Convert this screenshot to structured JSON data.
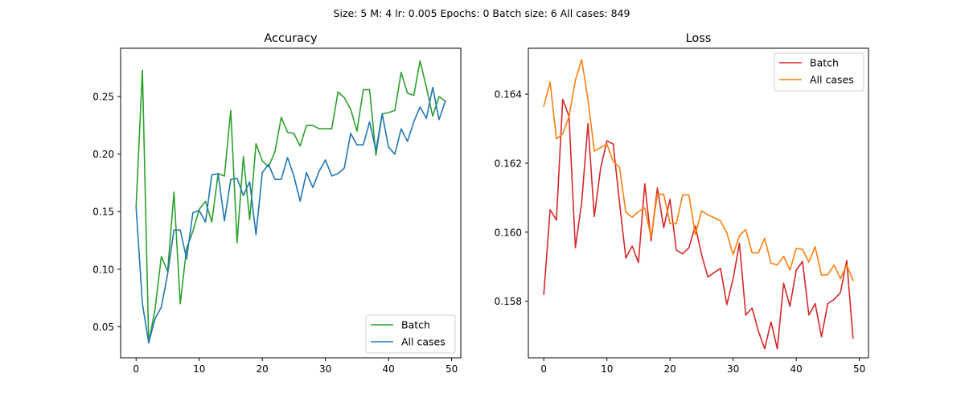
{
  "suptitle": "Size: 5   M: 4   lr: 0.005   Epochs: 0   Batch size: 6   All cases: 849",
  "chart_data": [
    {
      "type": "line",
      "title": "Accuracy",
      "xlabel": "",
      "ylabel": "",
      "xlim": [
        -2.45,
        51.45
      ],
      "ylim": [
        0.023,
        0.292
      ],
      "xticks": [
        0,
        10,
        20,
        30,
        40,
        50
      ],
      "xtick_labels": [
        "0",
        "10",
        "20",
        "30",
        "40",
        "50"
      ],
      "yticks": [
        0.05,
        0.1,
        0.15,
        0.2,
        0.25
      ],
      "ytick_labels": [
        "0.05",
        "0.10",
        "0.15",
        "0.20",
        "0.25"
      ],
      "grid": false,
      "legend_position": "lower-right",
      "x": [
        0,
        1,
        2,
        3,
        4,
        5,
        6,
        7,
        8,
        9,
        10,
        11,
        12,
        13,
        14,
        15,
        16,
        17,
        18,
        19,
        20,
        21,
        22,
        23,
        24,
        25,
        26,
        27,
        28,
        29,
        30,
        31,
        32,
        33,
        34,
        35,
        36,
        37,
        38,
        39,
        40,
        41,
        42,
        43,
        44,
        45,
        46,
        47,
        48,
        49
      ],
      "series": [
        {
          "name": "Batch",
          "color": "#2ca02c",
          "values": [
            0.154,
            0.273,
            0.036,
            0.065,
            0.111,
            0.098,
            0.167,
            0.07,
            0.118,
            0.133,
            0.152,
            0.159,
            0.141,
            0.183,
            0.181,
            0.238,
            0.123,
            0.198,
            0.143,
            0.209,
            0.194,
            0.189,
            0.202,
            0.232,
            0.219,
            0.218,
            0.207,
            0.225,
            0.225,
            0.222,
            0.222,
            0.222,
            0.254,
            0.249,
            0.239,
            0.22,
            0.256,
            0.256,
            0.199,
            0.235,
            0.236,
            0.238,
            0.271,
            0.253,
            0.251,
            0.281,
            0.258,
            0.233,
            0.25,
            0.246
          ]
        },
        {
          "name": "All cases",
          "color": "#1f77b4",
          "values": [
            0.154,
            0.07,
            0.036,
            0.057,
            0.067,
            0.096,
            0.134,
            0.134,
            0.109,
            0.149,
            0.151,
            0.141,
            0.182,
            0.183,
            0.142,
            0.178,
            0.179,
            0.164,
            0.176,
            0.13,
            0.184,
            0.191,
            0.178,
            0.178,
            0.197,
            0.181,
            0.159,
            0.184,
            0.171,
            0.185,
            0.195,
            0.181,
            0.183,
            0.188,
            0.218,
            0.208,
            0.208,
            0.228,
            0.203,
            0.235,
            0.206,
            0.2,
            0.222,
            0.211,
            0.228,
            0.241,
            0.231,
            0.258,
            0.23,
            0.246
          ]
        }
      ]
    },
    {
      "type": "line",
      "title": "Loss",
      "xlabel": "",
      "ylabel": "",
      "xlim": [
        -2.45,
        51.45
      ],
      "ylim": [
        0.15636,
        0.16533
      ],
      "xticks": [
        0,
        10,
        20,
        30,
        40,
        50
      ],
      "xtick_labels": [
        "0",
        "10",
        "20",
        "30",
        "40",
        "50"
      ],
      "yticks": [
        0.158,
        0.16,
        0.162,
        0.164
      ],
      "ytick_labels": [
        "0.158",
        "0.160",
        "0.162",
        "0.164"
      ],
      "grid": false,
      "legend_position": "upper-right",
      "x": [
        0,
        1,
        2,
        3,
        4,
        5,
        6,
        7,
        8,
        9,
        10,
        11,
        12,
        13,
        14,
        15,
        16,
        17,
        18,
        19,
        20,
        21,
        22,
        23,
        24,
        25,
        26,
        27,
        28,
        29,
        30,
        31,
        32,
        33,
        34,
        35,
        36,
        37,
        38,
        39,
        40,
        41,
        42,
        43,
        44,
        45,
        46,
        47,
        48,
        49
      ],
      "series": [
        {
          "name": "Batch",
          "color": "#d62728",
          "values": [
            0.1582,
            0.16065,
            0.16035,
            0.16385,
            0.16335,
            0.15955,
            0.16085,
            0.16315,
            0.16045,
            0.16185,
            0.16265,
            0.16255,
            0.16085,
            0.15925,
            0.1596,
            0.15912,
            0.1614,
            0.15975,
            0.16128,
            0.16013,
            0.16095,
            0.15948,
            0.15937,
            0.15955,
            0.16018,
            0.15935,
            0.1587,
            0.15883,
            0.15895,
            0.1579,
            0.15865,
            0.15968,
            0.1576,
            0.1578,
            0.15713,
            0.15662,
            0.1574,
            0.15662,
            0.15852,
            0.15785,
            0.1589,
            0.15915,
            0.1576,
            0.15793,
            0.15697,
            0.15793,
            0.15805,
            0.15825,
            0.15918,
            0.15693
          ]
        },
        {
          "name": "All cases",
          "color": "#ff7f0e",
          "values": [
            0.16365,
            0.16435,
            0.1627,
            0.16285,
            0.16335,
            0.1644,
            0.165,
            0.16385,
            0.16235,
            0.16245,
            0.16255,
            0.16205,
            0.16188,
            0.16058,
            0.16043,
            0.1606,
            0.1607,
            0.15985,
            0.1611,
            0.1611,
            0.16025,
            0.16025,
            0.16108,
            0.16108,
            0.15993,
            0.16062,
            0.1605,
            0.16042,
            0.16033,
            0.15998,
            0.15935,
            0.1599,
            0.16008,
            0.1594,
            0.1594,
            0.15982,
            0.1591,
            0.15905,
            0.1593,
            0.1589,
            0.15953,
            0.1595,
            0.15913,
            0.15958,
            0.15875,
            0.15877,
            0.15905,
            0.15865,
            0.15905,
            0.1586
          ]
        }
      ]
    }
  ]
}
